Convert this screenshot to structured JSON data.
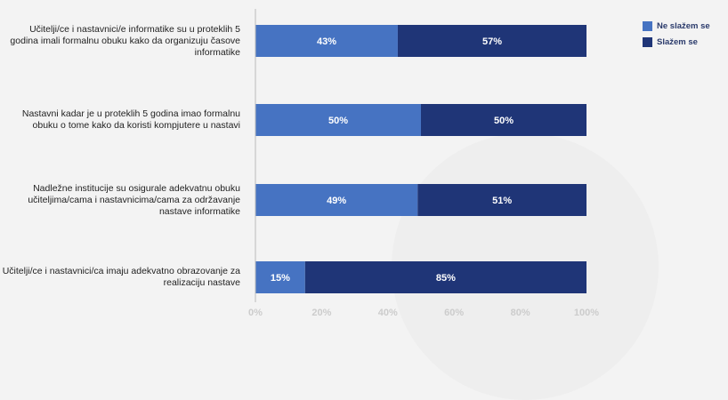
{
  "chart_data": {
    "type": "bar",
    "orientation": "horizontal",
    "stacked": true,
    "categories": [
      "Učitelji/ce i nastavnici/e informatike su u proteklih 5 godina imali formalnu obuku kako da organizuju časove informatike",
      "Nastavni kadar je u proteklih 5 godina imao formalnu obuku o tome kako da koristi kompjutere u nastavi",
      "Nadležne institucije su osigurale adekvatnu obuku učiteljima/cama i nastavnicima/cama za održavanje nastave informatike",
      "Učitelji/ce i nastavnici/ca imaju adekvatno obrazovanje za realizaciju nastave"
    ],
    "series": [
      {
        "name": "Ne slažem se",
        "color": "#4673c2",
        "values": [
          43,
          50,
          49,
          15
        ]
      },
      {
        "name": "Slažem se",
        "color": "#1f3577",
        "values": [
          57,
          50,
          51,
          85
        ]
      }
    ],
    "xlim": [
      0,
      100
    ],
    "xticks": [
      "0%",
      "20%",
      "40%",
      "60%",
      "80%",
      "100%"
    ],
    "value_suffix": "%",
    "legend_position": "top-right",
    "grid": false
  },
  "colors": {
    "axis": "#bbbbbb",
    "tick_label": "#cccccc",
    "data_label": "#ffffff"
  }
}
